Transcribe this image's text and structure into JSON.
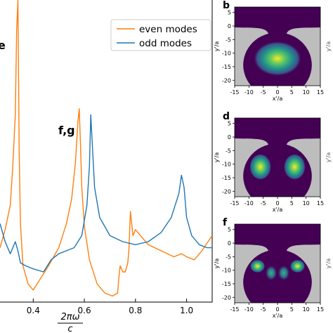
{
  "figure": {
    "main_panel": {
      "panel_letters": [
        "e",
        "f,g"
      ],
      "xlabel_numerator": "2πω",
      "xlabel_denominator": "c"
    },
    "side_panels": [
      {
        "letter": "b",
        "xlabel": "x'/a",
        "ylabel": "y'/a",
        "right_cut_label": "y'/a"
      },
      {
        "letter": "d",
        "xlabel": "x'/a",
        "ylabel": "y'/a",
        "right_cut_label": "y'/a"
      },
      {
        "letter": "f",
        "xlabel": "x'/a",
        "ylabel": "y'/a",
        "right_cut_label": "y'/a"
      }
    ],
    "side_axes": {
      "x_ticks": [
        "-15",
        "-10",
        "-5",
        "0",
        "5",
        "10",
        "15"
      ],
      "y_ticks": [
        "5",
        "0",
        "-5",
        "-10",
        "-15",
        "-20"
      ],
      "xlim": [
        -15,
        15
      ],
      "ylim": [
        -22,
        7
      ],
      "colors": {
        "outside": "#bdbdbd",
        "low": "#440154",
        "high": "#fde725"
      }
    }
  },
  "chart_data": {
    "type": "line",
    "xlabel": "2πω/c",
    "x_ticks": [
      0.4,
      0.6,
      0.8,
      1.0
    ],
    "xlim": [
      0.27,
      1.1
    ],
    "ylim": [
      0,
      1
    ],
    "legend_placement": "top-right",
    "series": [
      {
        "name": "even modes",
        "color": "#ff7f0e",
        "x": [
          0.27,
          0.29,
          0.31,
          0.32,
          0.33,
          0.335,
          0.34,
          0.345,
          0.35,
          0.36,
          0.38,
          0.4,
          0.43,
          0.46,
          0.5,
          0.53,
          0.55,
          0.565,
          0.575,
          0.58,
          0.585,
          0.59,
          0.6,
          0.62,
          0.65,
          0.68,
          0.71,
          0.73,
          0.735,
          0.74,
          0.75,
          0.76,
          0.77,
          0.775,
          0.78,
          0.785,
          0.79,
          0.8,
          0.82,
          0.85,
          0.9,
          0.95,
          0.98,
          1.0,
          1.03,
          1.06,
          1.1
        ],
        "y": [
          0.18,
          0.24,
          0.32,
          0.45,
          0.62,
          0.9,
          1.0,
          0.5,
          0.26,
          0.12,
          0.06,
          0.04,
          0.08,
          0.12,
          0.18,
          0.26,
          0.34,
          0.46,
          0.6,
          0.64,
          0.52,
          0.38,
          0.25,
          0.14,
          0.06,
          0.03,
          0.02,
          0.03,
          0.08,
          0.12,
          0.1,
          0.1,
          0.13,
          0.18,
          0.3,
          0.26,
          0.22,
          0.24,
          0.22,
          0.19,
          0.17,
          0.15,
          0.16,
          0.15,
          0.14,
          0.17,
          0.22
        ]
      },
      {
        "name": "odd modes",
        "color": "#1f77b4",
        "x": [
          0.27,
          0.29,
          0.31,
          0.32,
          0.33,
          0.34,
          0.35,
          0.37,
          0.4,
          0.44,
          0.47,
          0.5,
          0.53,
          0.56,
          0.59,
          0.61,
          0.62,
          0.625,
          0.63,
          0.64,
          0.66,
          0.7,
          0.75,
          0.8,
          0.85,
          0.9,
          0.94,
          0.97,
          0.98,
          0.99,
          1.0,
          1.02,
          1.05,
          1.08,
          1.1
        ],
        "y": [
          0.26,
          0.2,
          0.16,
          0.18,
          0.2,
          0.17,
          0.13,
          0.12,
          0.11,
          0.1,
          0.14,
          0.16,
          0.17,
          0.18,
          0.22,
          0.32,
          0.45,
          0.62,
          0.54,
          0.38,
          0.28,
          0.22,
          0.2,
          0.19,
          0.2,
          0.23,
          0.28,
          0.36,
          0.42,
          0.38,
          0.28,
          0.22,
          0.19,
          0.18,
          0.18
        ]
      }
    ]
  }
}
